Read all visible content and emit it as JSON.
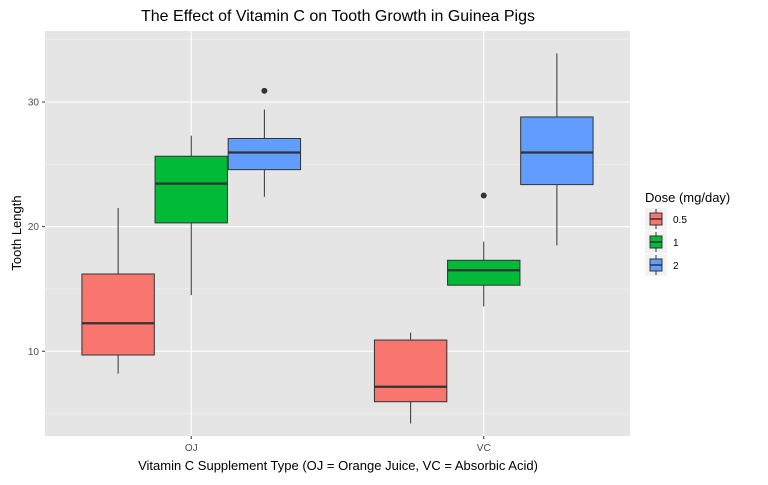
{
  "chart_data": {
    "type": "boxplot",
    "title": "The Effect of Vitamin C on Tooth Growth in Guinea Pigs",
    "xlabel": "Vitamin C Supplement Type (OJ = Orange Juice, VC = Absorbic Acid)",
    "ylabel": "Tooth Length",
    "categories": [
      "OJ",
      "VC"
    ],
    "ylim": [
      3.2,
      35.7
    ],
    "yticks": [
      10,
      20,
      30
    ],
    "yticks_minor": [
      5,
      15,
      25,
      35
    ],
    "grid": true,
    "legend": {
      "title": "Dose (mg/day)",
      "position": "right"
    },
    "series": [
      {
        "name": "0.5",
        "color": "#F8766D",
        "boxes": [
          {
            "category": "OJ",
            "whisker_low": 8.2,
            "q1": 9.7,
            "median": 12.25,
            "q3": 16.2,
            "whisker_high": 21.5,
            "outliers": []
          },
          {
            "category": "VC",
            "whisker_low": 4.2,
            "q1": 5.95,
            "median": 7.15,
            "q3": 10.9,
            "whisker_high": 11.5,
            "outliers": []
          }
        ]
      },
      {
        "name": "1",
        "color": "#00BA38",
        "boxes": [
          {
            "category": "OJ",
            "whisker_low": 14.5,
            "q1": 20.3,
            "median": 23.45,
            "q3": 25.65,
            "whisker_high": 27.3,
            "outliers": []
          },
          {
            "category": "VC",
            "whisker_low": 13.6,
            "q1": 15.3,
            "median": 16.5,
            "q3": 17.3,
            "whisker_high": 18.8,
            "outliers": [
              22.5
            ]
          }
        ]
      },
      {
        "name": "2",
        "color": "#619CFF",
        "boxes": [
          {
            "category": "OJ",
            "whisker_low": 22.4,
            "q1": 24.575,
            "median": 25.95,
            "q3": 27.075,
            "whisker_high": 29.4,
            "outliers": [
              30.9
            ]
          },
          {
            "category": "VC",
            "whisker_low": 18.5,
            "q1": 23.375,
            "median": 25.95,
            "q3": 28.8,
            "whisker_high": 33.9,
            "outliers": []
          }
        ]
      }
    ]
  }
}
